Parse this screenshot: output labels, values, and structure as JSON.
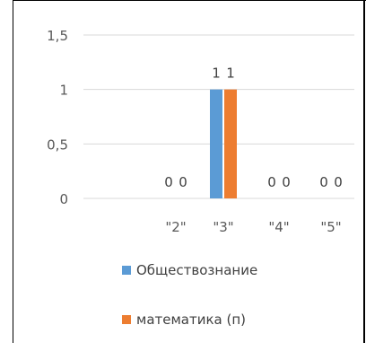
{
  "chart_data": {
    "type": "bar",
    "title": "",
    "xlabel": "",
    "ylabel": "",
    "categories": [
      "\"2\"",
      "\"3\"",
      "\"4\"",
      "\"5\""
    ],
    "ylim": [
      0,
      1.5
    ],
    "y_ticks": [
      "0",
      "0,5",
      "1",
      "1,5"
    ],
    "grid": true,
    "legend_position": "bottom",
    "data_labels": true,
    "series": [
      {
        "name": "Обществознание",
        "values": [
          0,
          1,
          0,
          0
        ],
        "labels": [
          "0",
          "1",
          "0",
          "0"
        ],
        "color": "#5B9BD5"
      },
      {
        "name": "математика (п)",
        "values": [
          0,
          1,
          0,
          0
        ],
        "labels": [
          "0",
          "1",
          "0",
          "0"
        ],
        "color": "#ED7D31"
      }
    ]
  }
}
